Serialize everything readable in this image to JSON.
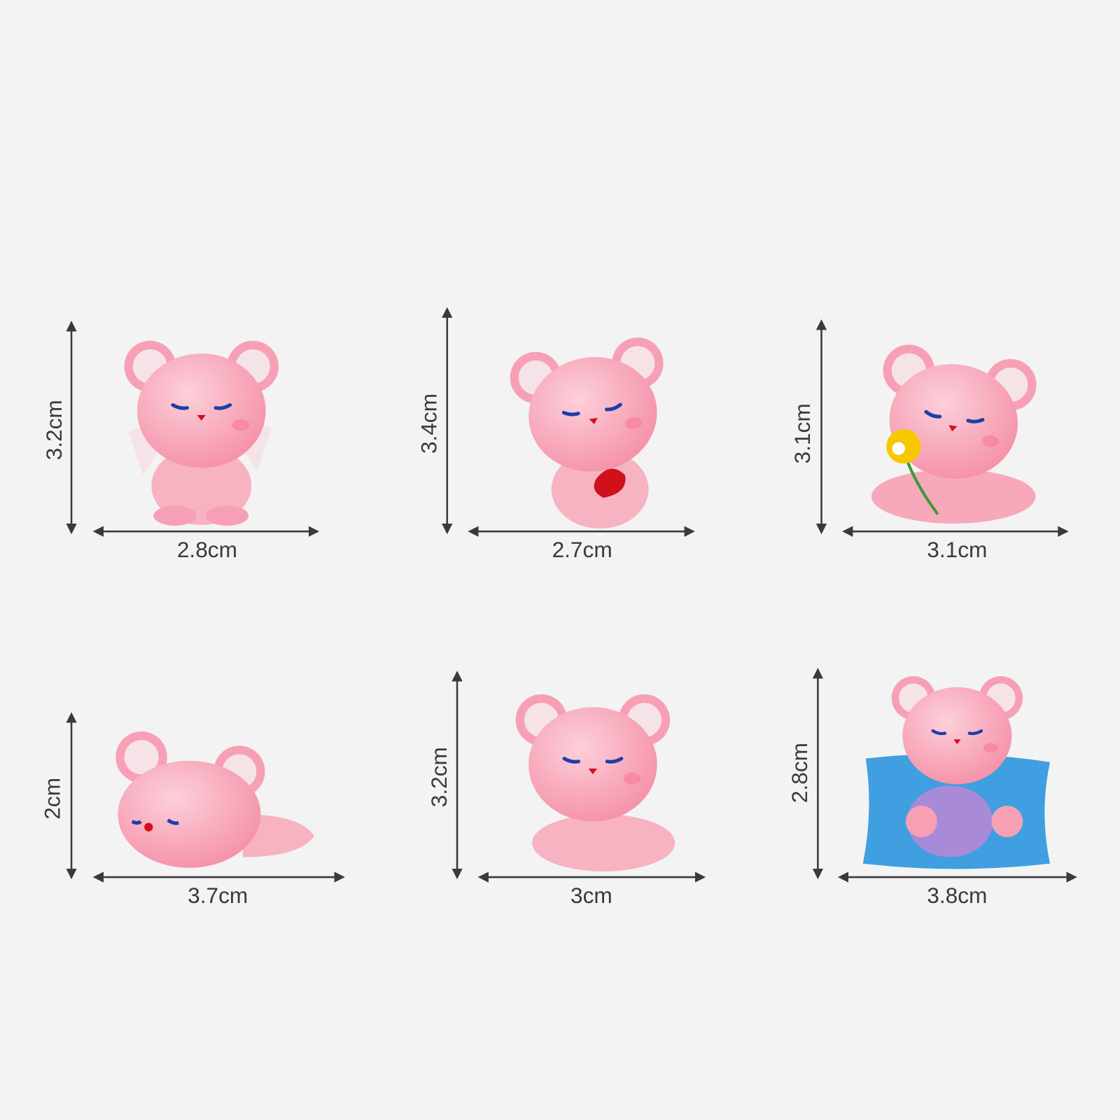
{
  "colors": {
    "background": "#f3f3f3",
    "bear_pink": "#f7a9bb",
    "ear_inner": "#f6e3e8",
    "pillow_blue": "#3f9fe0",
    "heart_red": "#d0101a",
    "flower_yellow": "#f5c800"
  },
  "items": [
    {
      "height": "3.2cm",
      "width": "2.8cm",
      "pose": "bear with wings"
    },
    {
      "height": "3.4cm",
      "width": "2.7cm",
      "pose": "bear holding heart"
    },
    {
      "height": "3.1cm",
      "width": "3.1cm",
      "pose": "bear with flower"
    },
    {
      "height": "2cm",
      "width": "3.7cm",
      "pose": "lying bear"
    },
    {
      "height": "3.2cm",
      "width": "3cm",
      "pose": "sitting bear"
    },
    {
      "height": "2.8cm",
      "width": "3.8cm",
      "pose": "bear on pillow"
    }
  ]
}
